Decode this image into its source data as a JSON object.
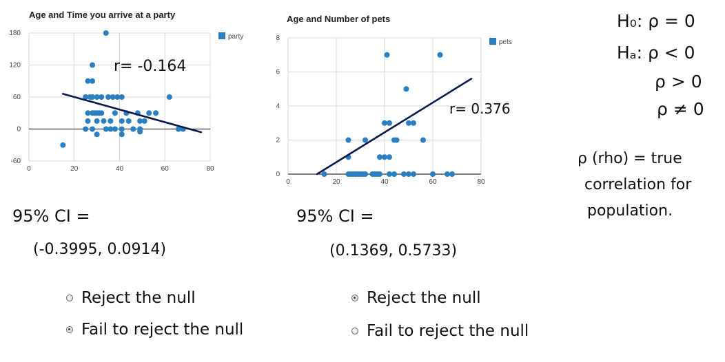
{
  "chart_data": [
    {
      "type": "scatter",
      "title": "Age and Time you arrive at a party",
      "legend": {
        "label": "party",
        "placement": "top-right"
      },
      "x_ticks": [
        "0",
        "20",
        "40",
        "60",
        "80"
      ],
      "y_ticks": [
        "180",
        "120",
        "60",
        "0",
        "-60"
      ],
      "xlim": [
        0,
        80
      ],
      "ylim": [
        -60,
        180
      ],
      "grid": true,
      "points": [
        {
          "x": 15,
          "y": -30
        },
        {
          "x": 34,
          "y": 180
        },
        {
          "x": 28,
          "y": 120
        },
        {
          "x": 26,
          "y": 90
        },
        {
          "x": 28,
          "y": 90
        },
        {
          "x": 25,
          "y": 60
        },
        {
          "x": 27,
          "y": 60
        },
        {
          "x": 28,
          "y": 60
        },
        {
          "x": 30,
          "y": 60
        },
        {
          "x": 32,
          "y": 60
        },
        {
          "x": 35,
          "y": 60
        },
        {
          "x": 37,
          "y": 60
        },
        {
          "x": 39,
          "y": 60
        },
        {
          "x": 41,
          "y": 60
        },
        {
          "x": 62,
          "y": 60
        },
        {
          "x": 26,
          "y": 30
        },
        {
          "x": 28,
          "y": 30
        },
        {
          "x": 29,
          "y": 30
        },
        {
          "x": 30,
          "y": 30
        },
        {
          "x": 31,
          "y": 30
        },
        {
          "x": 32,
          "y": 30
        },
        {
          "x": 38,
          "y": 30
        },
        {
          "x": 43,
          "y": 30
        },
        {
          "x": 48,
          "y": 30
        },
        {
          "x": 53,
          "y": 30
        },
        {
          "x": 56,
          "y": 30
        },
        {
          "x": 26,
          "y": 15
        },
        {
          "x": 30,
          "y": 15
        },
        {
          "x": 33,
          "y": 15
        },
        {
          "x": 36,
          "y": 15
        },
        {
          "x": 41,
          "y": 15
        },
        {
          "x": 44,
          "y": 15
        },
        {
          "x": 49,
          "y": 15
        },
        {
          "x": 51,
          "y": 15
        },
        {
          "x": 25,
          "y": 0
        },
        {
          "x": 28,
          "y": 0
        },
        {
          "x": 34,
          "y": 0
        },
        {
          "x": 36,
          "y": 0
        },
        {
          "x": 38,
          "y": 0
        },
        {
          "x": 41,
          "y": 0
        },
        {
          "x": 46,
          "y": 0
        },
        {
          "x": 49,
          "y": 0
        },
        {
          "x": 66,
          "y": 0
        },
        {
          "x": 68,
          "y": 0
        },
        {
          "x": 30,
          "y": -10
        },
        {
          "x": 41,
          "y": -10
        },
        {
          "x": 49,
          "y": -5
        }
      ],
      "trend_line": {
        "x1": 15,
        "y1": 66,
        "x2": 76,
        "y2": -6
      },
      "annotation": "r= -0.164"
    },
    {
      "type": "scatter",
      "title": "Age and Number of pets",
      "legend": {
        "label": "pets",
        "placement": "top-right"
      },
      "x_ticks": [
        "0",
        "20",
        "40",
        "60",
        "80"
      ],
      "y_ticks": [
        "8",
        "6",
        "4",
        "2",
        "0"
      ],
      "xlim": [
        0,
        80
      ],
      "ylim": [
        0,
        8
      ],
      "grid": true,
      "points": [
        {
          "x": 15,
          "y": 0
        },
        {
          "x": 25,
          "y": 0
        },
        {
          "x": 26,
          "y": 0
        },
        {
          "x": 27,
          "y": 0
        },
        {
          "x": 28,
          "y": 0
        },
        {
          "x": 29,
          "y": 0
        },
        {
          "x": 30,
          "y": 0
        },
        {
          "x": 31,
          "y": 0
        },
        {
          "x": 32,
          "y": 0
        },
        {
          "x": 35,
          "y": 0
        },
        {
          "x": 36,
          "y": 0
        },
        {
          "x": 37,
          "y": 0
        },
        {
          "x": 38,
          "y": 0
        },
        {
          "x": 42,
          "y": 0
        },
        {
          "x": 44,
          "y": 0
        },
        {
          "x": 48,
          "y": 0
        },
        {
          "x": 50,
          "y": 0
        },
        {
          "x": 52,
          "y": 0
        },
        {
          "x": 60,
          "y": 0
        },
        {
          "x": 66,
          "y": 0
        },
        {
          "x": 68,
          "y": 0
        },
        {
          "x": 25,
          "y": 1
        },
        {
          "x": 38,
          "y": 1
        },
        {
          "x": 40,
          "y": 1
        },
        {
          "x": 42,
          "y": 1
        },
        {
          "x": 25,
          "y": 2
        },
        {
          "x": 32,
          "y": 2
        },
        {
          "x": 44,
          "y": 2
        },
        {
          "x": 45,
          "y": 2
        },
        {
          "x": 56,
          "y": 2
        },
        {
          "x": 40,
          "y": 3
        },
        {
          "x": 42,
          "y": 3
        },
        {
          "x": 50,
          "y": 3
        },
        {
          "x": 52,
          "y": 3
        },
        {
          "x": 49,
          "y": 5
        },
        {
          "x": 41,
          "y": 7
        },
        {
          "x": 63,
          "y": 7
        }
      ],
      "trend_line": {
        "x1": 12,
        "y1": 0,
        "x2": 76,
        "y2": 5.6
      },
      "annotation": "r= 0.376"
    }
  ],
  "notes": {
    "left_ci_label": "95% CI =",
    "left_ci_value": "(-0.3995,  0.0914)",
    "right_ci_label": "95% CI =",
    "right_ci_value": "(0.1369,  0.5733)"
  },
  "choices": {
    "left": [
      {
        "label": "Reject the null",
        "checked": false
      },
      {
        "label": "Fail to reject the null",
        "checked": true
      }
    ],
    "right": [
      {
        "label": "Reject the null",
        "checked": true
      },
      {
        "label": "Fail to reject the null",
        "checked": false
      }
    ]
  },
  "hypotheses": {
    "h0": "H₀: ρ = 0",
    "ha": "Hₐ: ρ < 0",
    "alt2": "ρ > 0",
    "alt3": "ρ ≠ 0"
  },
  "definition": {
    "line1": "ρ  (rho) = true",
    "line2": "correlation for",
    "line3": "population."
  },
  "colors": {
    "point": "#2b7fc1",
    "trend": "#0b1a4e",
    "grid": "#d9d9d9",
    "axis": "#333333"
  }
}
